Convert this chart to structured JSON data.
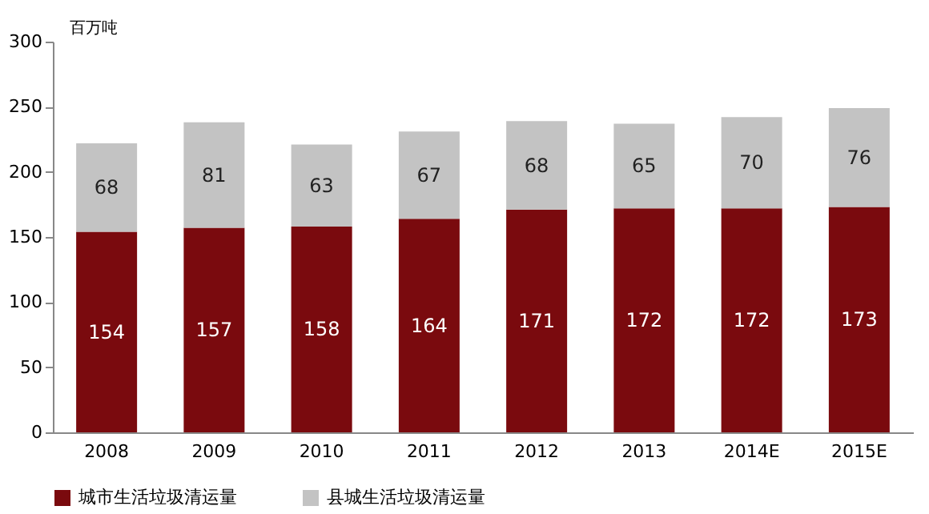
{
  "chart_data": {
    "type": "bar",
    "stacked": true,
    "ylabel": "百万吨",
    "categories": [
      "2008",
      "2009",
      "2010",
      "2011",
      "2012",
      "2013",
      "2014E",
      "2015E"
    ],
    "series": [
      {
        "name": "城市生活垃圾清运量",
        "color": "#7a0a0e",
        "values": [
          154,
          157,
          158,
          164,
          171,
          172,
          172,
          173
        ]
      },
      {
        "name": "县城生活垃圾清运量",
        "color": "#c3c3c3",
        "values": [
          68,
          81,
          63,
          67,
          68,
          65,
          70,
          76
        ]
      }
    ],
    "ylim": [
      0,
      300
    ],
    "yticks": [
      0,
      50,
      100,
      150,
      200,
      250,
      300
    ],
    "data_labels": true,
    "grid": false,
    "legend": "bottom"
  }
}
